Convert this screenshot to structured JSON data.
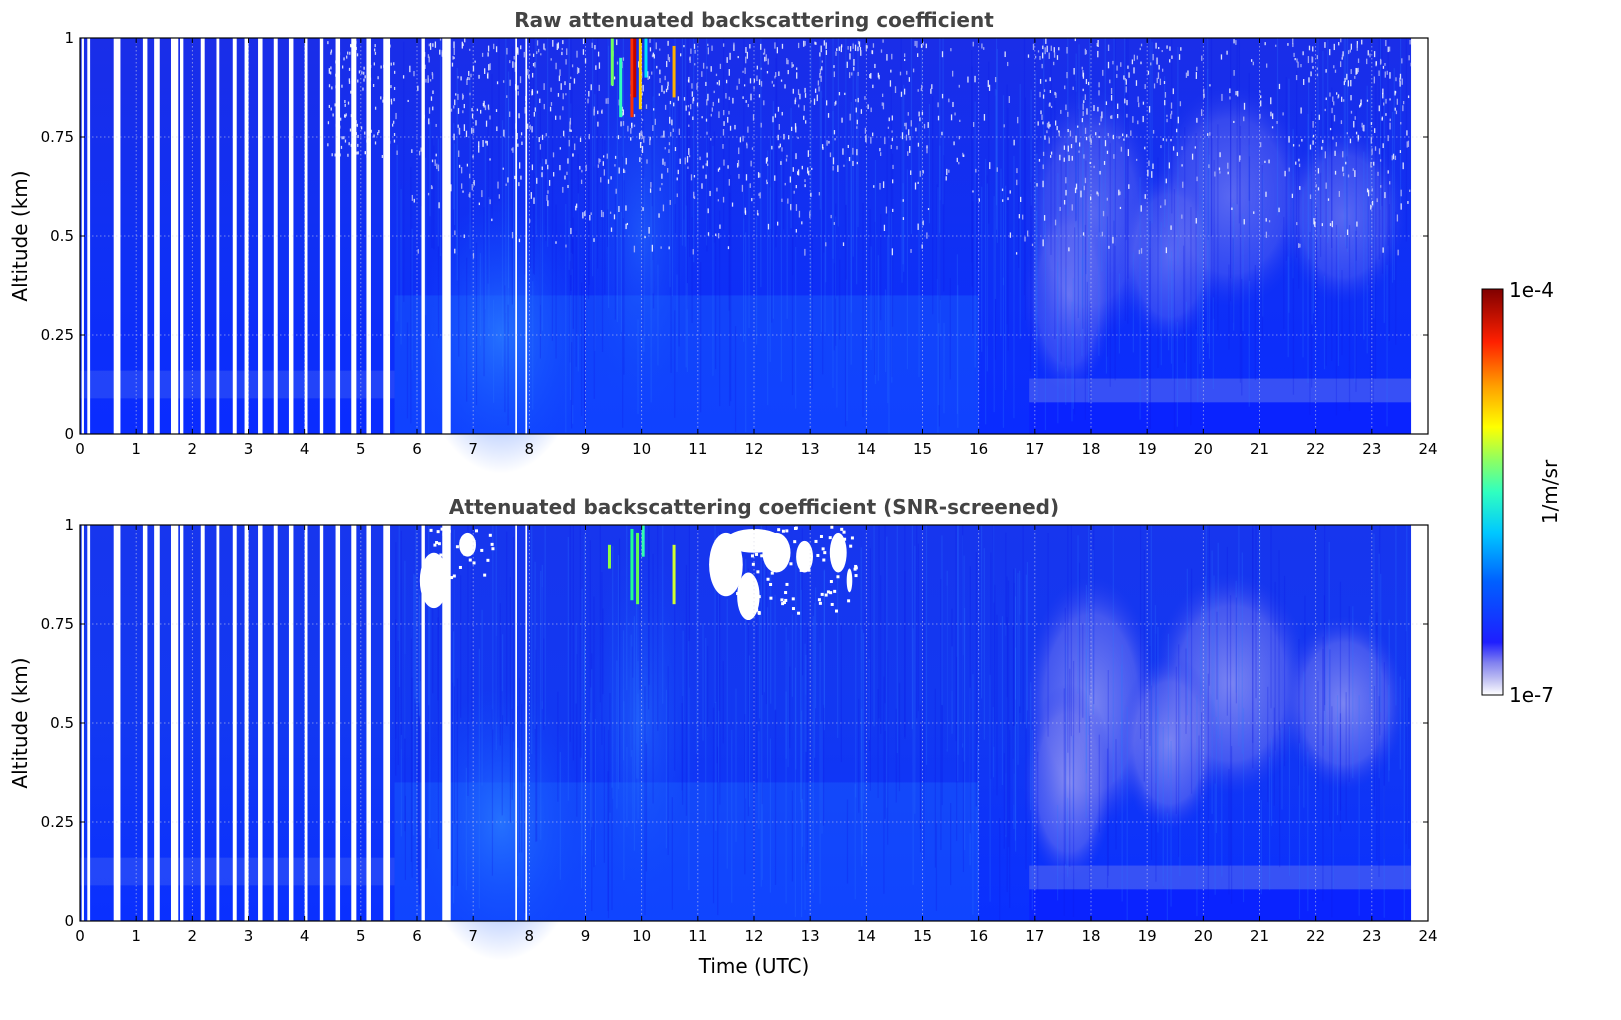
{
  "chart_data": [
    {
      "type": "heatmap",
      "title": "Raw attenuated backscattering coefficient",
      "ylabel": "Altitude (km)",
      "xlabel": "",
      "xlim": [
        0,
        24
      ],
      "ylim": [
        0,
        1
      ],
      "xticks": [
        "0",
        "1",
        "2",
        "3",
        "4",
        "5",
        "6",
        "7",
        "8",
        "9",
        "10",
        "11",
        "12",
        "13",
        "14",
        "15",
        "16",
        "17",
        "18",
        "19",
        "20",
        "21",
        "22",
        "23",
        "24"
      ],
      "yticks": [
        "0",
        "0.25",
        "0.5",
        "0.75",
        "1"
      ],
      "grid": true,
      "data_end_hour": 23.7,
      "gaps_hours": [
        [
          0.03,
          0.07
        ],
        [
          0.13,
          0.18
        ],
        [
          0.6,
          0.72
        ],
        [
          1.12,
          1.2
        ],
        [
          1.32,
          1.42
        ],
        [
          1.62,
          1.75
        ],
        [
          1.78,
          1.84
        ],
        [
          2.15,
          2.22
        ],
        [
          2.43,
          2.48
        ],
        [
          2.72,
          2.79
        ],
        [
          2.93,
          3.0
        ],
        [
          3.17,
          3.25
        ],
        [
          3.45,
          3.52
        ],
        [
          3.72,
          3.8
        ],
        [
          4.0,
          4.05
        ],
        [
          4.27,
          4.33
        ],
        [
          4.55,
          4.63
        ],
        [
          4.83,
          4.92
        ],
        [
          5.1,
          5.18
        ],
        [
          5.4,
          5.52
        ],
        [
          6.08,
          6.14
        ],
        [
          6.45,
          6.6
        ],
        [
          7.75,
          7.78
        ],
        [
          7.93,
          7.96
        ]
      ],
      "summary": "Blue background (~1e-6 1/m/sr) near surface and aloft, noisy white specks above 0.5 km, light-blue/lavender low values 17-23.5 UTC, green-red cloud streaks near 1 km around 9.5-10.7 UTC"
    },
    {
      "type": "heatmap",
      "title": "Attenuated backscattering coefficient (SNR-screened)",
      "ylabel": "Altitude (km)",
      "xlabel": "Time (UTC)",
      "xlim": [
        0,
        24
      ],
      "ylim": [
        0,
        1
      ],
      "xticks": [
        "0",
        "1",
        "2",
        "3",
        "4",
        "5",
        "6",
        "7",
        "8",
        "9",
        "10",
        "11",
        "12",
        "13",
        "14",
        "15",
        "16",
        "17",
        "18",
        "19",
        "20",
        "21",
        "22",
        "23",
        "24"
      ],
      "yticks": [
        "0",
        "0.25",
        "0.5",
        "0.75",
        "1"
      ],
      "grid": true,
      "data_end_hour": 23.7,
      "gaps_hours": [
        [
          0.03,
          0.07
        ],
        [
          0.13,
          0.18
        ],
        [
          0.6,
          0.72
        ],
        [
          1.12,
          1.2
        ],
        [
          1.32,
          1.42
        ],
        [
          1.62,
          1.75
        ],
        [
          1.78,
          1.84
        ],
        [
          2.15,
          2.22
        ],
        [
          2.43,
          2.48
        ],
        [
          2.72,
          2.79
        ],
        [
          2.93,
          3.0
        ],
        [
          3.17,
          3.25
        ],
        [
          3.45,
          3.52
        ],
        [
          3.72,
          3.8
        ],
        [
          4.0,
          4.05
        ],
        [
          4.27,
          4.33
        ],
        [
          4.55,
          4.63
        ],
        [
          4.83,
          4.92
        ],
        [
          5.1,
          5.18
        ],
        [
          5.4,
          5.52
        ],
        [
          6.08,
          6.14
        ],
        [
          6.45,
          6.6
        ],
        [
          7.75,
          7.78
        ],
        [
          7.93,
          7.96
        ]
      ],
      "summary": "Smoothed field; white screened patches near 0.8-1 km around 6.3-7.2 and 11.3-13.8 UTC; lavender low-backscatter region 17-23.5 UTC above 0.2 km"
    }
  ],
  "colorbar": {
    "label": "1/m/sr",
    "max_label": "1e-4",
    "min_label": "1e-7",
    "scale": "log",
    "range": [
      1e-07,
      0.0001
    ],
    "colormap": [
      "#ffffff",
      "#bdbdf2",
      "#8080f0",
      "#1e1eff",
      "#0050ff",
      "#00c0ff",
      "#20ffd0",
      "#80ff70",
      "#ffff00",
      "#ffa000",
      "#ff2000",
      "#800000"
    ]
  }
}
